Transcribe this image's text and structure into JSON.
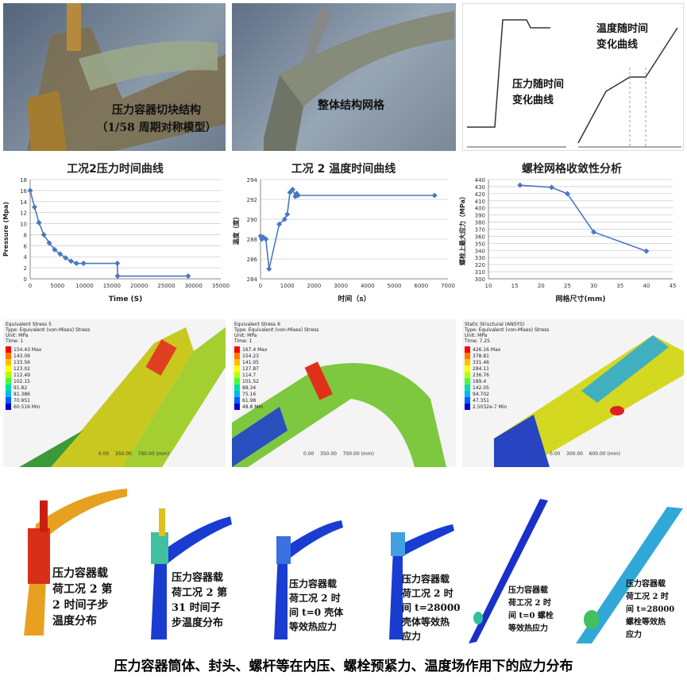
{
  "top": {
    "p1_lines": [
      "压力容器切块结构",
      "（1/58 周期对称模型）"
    ],
    "p2_label": "整体结构网格",
    "p3_left_lines": [
      "压力随时间",
      "变化曲线"
    ],
    "p3_right_lines": [
      "温度随时间",
      "变化曲线"
    ]
  },
  "chart_data": [
    {
      "type": "line",
      "title": "工况2压力时间曲线",
      "xlabel": "Time (S)",
      "ylabel": "Pressure (Mpa)",
      "xlim": [
        0,
        35000
      ],
      "ylim": [
        0,
        18
      ],
      "xticks": [
        "0",
        "5000",
        "10000",
        "15000",
        "20000",
        "25000",
        "30000",
        "35000"
      ],
      "yticks": [
        "0",
        "2",
        "4",
        "6",
        "8",
        "10",
        "12",
        "14",
        "16",
        "18"
      ],
      "x": [
        0,
        800,
        1600,
        2500,
        3500,
        4500,
        5500,
        6500,
        7500,
        8500,
        9800,
        16000,
        16050,
        29000
      ],
      "y": [
        16,
        13,
        10.2,
        8,
        6.5,
        5.3,
        4.5,
        3.8,
        3.2,
        2.8,
        2.8,
        2.8,
        0.5,
        0.5
      ],
      "grid": true
    },
    {
      "type": "line",
      "title": "工况 2 温度时间曲线",
      "xlabel": "时间（s）",
      "ylabel": "温度（度）",
      "xlim": [
        0,
        7000
      ],
      "ylim": [
        284,
        294
      ],
      "xticks": [
        "0",
        "1000",
        "2000",
        "3000",
        "4000",
        "5000",
        "6000",
        "7000"
      ],
      "yticks": [
        "284",
        "286",
        "288",
        "290",
        "292",
        "294"
      ],
      "x": [
        0,
        50,
        100,
        200,
        320,
        700,
        900,
        1000,
        1100,
        1200,
        1300,
        1350,
        1400,
        6500
      ],
      "y": [
        288.3,
        288,
        288.2,
        288,
        285,
        289.5,
        290,
        290.5,
        292.7,
        293,
        292.3,
        292.6,
        292.4,
        292.4
      ],
      "grid": true
    },
    {
      "type": "line",
      "title": "螺栓网格收敛性分析",
      "xlabel": "网格尺寸(mm)",
      "ylabel": "螺栓上最大应力（MPa）",
      "xlim": [
        10,
        45
      ],
      "ylim": [
        300,
        440
      ],
      "xticks": [
        "10",
        "15",
        "20",
        "25",
        "30",
        "35",
        "40",
        "45"
      ],
      "yticks": [
        "300",
        "310",
        "320",
        "330",
        "340",
        "350",
        "360",
        "370",
        "380",
        "390",
        "400",
        "410",
        "420",
        "430",
        "440"
      ],
      "x": [
        16,
        22,
        25,
        30,
        40
      ],
      "y": [
        432,
        429,
        420,
        366,
        339
      ],
      "grid": true
    }
  ],
  "fea": {
    "p1_head": [
      "Equivalent Stress 5",
      "Type: Equivalent (von-Mises) Stress",
      "Unit: MPa",
      "Time: 1"
    ],
    "p1_legend": [
      "154.43 Max",
      "143.09",
      "133.56",
      "123.02",
      "112.49",
      "102.15",
      "91.82",
      "81.386",
      "70.951",
      "60.516 Min"
    ],
    "p2_head": [
      "Equivalent Stress 6",
      "Type: Equivalent (von-Mises) Stress",
      "Unit: MPa",
      "Time: 1"
    ],
    "p2_legend": [
      "167.4 Max",
      "154.23",
      "141.05",
      "127.87",
      "114.7",
      "101.52",
      "88.34",
      "75.16",
      "61.98",
      "48.8 Min"
    ],
    "p3_head": [
      "Static Structural (ANSYS)",
      "Type: Equivalent (von-Mises) Stress",
      "Unit: MPa",
      "Time: 7.25"
    ],
    "p3_legend": [
      "426.16 Max",
      "378.81",
      "331.46",
      "284.11",
      "236.76",
      "189.4",
      "142.05",
      "94.702",
      "47.351",
      "2.5032e-7 Min"
    ],
    "scale1": [
      "0.00",
      "350.00",
      "700.00 (mm)"
    ],
    "scale2": [
      "0.00",
      "350.00",
      "700.00 (mm)"
    ],
    "scale3": [
      "0.00",
      "300.00",
      "600.00 (mm)"
    ]
  },
  "bottom": {
    "l1": [
      "压力容器载",
      "荷工况 2 第",
      "2 时间子步",
      "温度分布"
    ],
    "l2": [
      "压力容器载",
      "荷工况 2 第",
      "31 时间子",
      "步温度分布"
    ],
    "l3": [
      "压力容器载",
      "荷工况 2 时",
      "间 t=0 壳体",
      "等效热应力"
    ],
    "l4": [
      "压力容器载",
      "荷工况 2 时",
      "间  t=28000",
      "壳体等效热",
      "应力"
    ],
    "l5": [
      "压力容器载",
      "荷工况 2 时",
      "间  t=0  螺栓",
      "等效热应力"
    ],
    "l6": [
      "压力容器载",
      "荷工况 2 时",
      "间  t=28000",
      "螺栓等效热",
      "应力"
    ]
  },
  "caption": "压力容器筒体、封头、螺杆等在内压、螺栓预紧力、温度场作用下的应力分布",
  "colors": {
    "series": "#4a78c0",
    "grid": "#cfcfcf"
  }
}
